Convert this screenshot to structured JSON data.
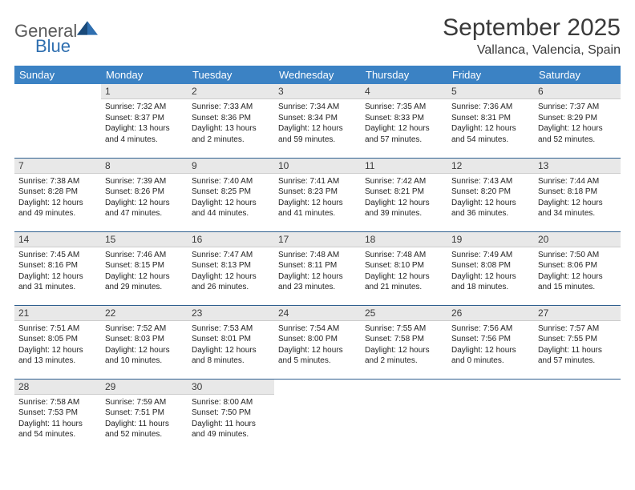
{
  "logo": {
    "word1": "General",
    "word2": "Blue",
    "gray": "#6a6a6a",
    "blue": "#2f6fb0",
    "triangle": "#2f6fb0"
  },
  "title": "September 2025",
  "location": "Vallanca, Valencia, Spain",
  "colors": {
    "header_bg": "#3b82c4",
    "header_text": "#ffffff",
    "daynum_bg": "#e8e8e8",
    "week_border": "#2f5f8f",
    "text": "#232323"
  },
  "day_headers": [
    "Sunday",
    "Monday",
    "Tuesday",
    "Wednesday",
    "Thursday",
    "Friday",
    "Saturday"
  ],
  "weeks": [
    [
      null,
      {
        "n": "1",
        "sr": "7:32 AM",
        "ss": "8:37 PM",
        "dl": "13 hours and 4 minutes."
      },
      {
        "n": "2",
        "sr": "7:33 AM",
        "ss": "8:36 PM",
        "dl": "13 hours and 2 minutes."
      },
      {
        "n": "3",
        "sr": "7:34 AM",
        "ss": "8:34 PM",
        "dl": "12 hours and 59 minutes."
      },
      {
        "n": "4",
        "sr": "7:35 AM",
        "ss": "8:33 PM",
        "dl": "12 hours and 57 minutes."
      },
      {
        "n": "5",
        "sr": "7:36 AM",
        "ss": "8:31 PM",
        "dl": "12 hours and 54 minutes."
      },
      {
        "n": "6",
        "sr": "7:37 AM",
        "ss": "8:29 PM",
        "dl": "12 hours and 52 minutes."
      }
    ],
    [
      {
        "n": "7",
        "sr": "7:38 AM",
        "ss": "8:28 PM",
        "dl": "12 hours and 49 minutes."
      },
      {
        "n": "8",
        "sr": "7:39 AM",
        "ss": "8:26 PM",
        "dl": "12 hours and 47 minutes."
      },
      {
        "n": "9",
        "sr": "7:40 AM",
        "ss": "8:25 PM",
        "dl": "12 hours and 44 minutes."
      },
      {
        "n": "10",
        "sr": "7:41 AM",
        "ss": "8:23 PM",
        "dl": "12 hours and 41 minutes."
      },
      {
        "n": "11",
        "sr": "7:42 AM",
        "ss": "8:21 PM",
        "dl": "12 hours and 39 minutes."
      },
      {
        "n": "12",
        "sr": "7:43 AM",
        "ss": "8:20 PM",
        "dl": "12 hours and 36 minutes."
      },
      {
        "n": "13",
        "sr": "7:44 AM",
        "ss": "8:18 PM",
        "dl": "12 hours and 34 minutes."
      }
    ],
    [
      {
        "n": "14",
        "sr": "7:45 AM",
        "ss": "8:16 PM",
        "dl": "12 hours and 31 minutes."
      },
      {
        "n": "15",
        "sr": "7:46 AM",
        "ss": "8:15 PM",
        "dl": "12 hours and 29 minutes."
      },
      {
        "n": "16",
        "sr": "7:47 AM",
        "ss": "8:13 PM",
        "dl": "12 hours and 26 minutes."
      },
      {
        "n": "17",
        "sr": "7:48 AM",
        "ss": "8:11 PM",
        "dl": "12 hours and 23 minutes."
      },
      {
        "n": "18",
        "sr": "7:48 AM",
        "ss": "8:10 PM",
        "dl": "12 hours and 21 minutes."
      },
      {
        "n": "19",
        "sr": "7:49 AM",
        "ss": "8:08 PM",
        "dl": "12 hours and 18 minutes."
      },
      {
        "n": "20",
        "sr": "7:50 AM",
        "ss": "8:06 PM",
        "dl": "12 hours and 15 minutes."
      }
    ],
    [
      {
        "n": "21",
        "sr": "7:51 AM",
        "ss": "8:05 PM",
        "dl": "12 hours and 13 minutes."
      },
      {
        "n": "22",
        "sr": "7:52 AM",
        "ss": "8:03 PM",
        "dl": "12 hours and 10 minutes."
      },
      {
        "n": "23",
        "sr": "7:53 AM",
        "ss": "8:01 PM",
        "dl": "12 hours and 8 minutes."
      },
      {
        "n": "24",
        "sr": "7:54 AM",
        "ss": "8:00 PM",
        "dl": "12 hours and 5 minutes."
      },
      {
        "n": "25",
        "sr": "7:55 AM",
        "ss": "7:58 PM",
        "dl": "12 hours and 2 minutes."
      },
      {
        "n": "26",
        "sr": "7:56 AM",
        "ss": "7:56 PM",
        "dl": "12 hours and 0 minutes."
      },
      {
        "n": "27",
        "sr": "7:57 AM",
        "ss": "7:55 PM",
        "dl": "11 hours and 57 minutes."
      }
    ],
    [
      {
        "n": "28",
        "sr": "7:58 AM",
        "ss": "7:53 PM",
        "dl": "11 hours and 54 minutes."
      },
      {
        "n": "29",
        "sr": "7:59 AM",
        "ss": "7:51 PM",
        "dl": "11 hours and 52 minutes."
      },
      {
        "n": "30",
        "sr": "8:00 AM",
        "ss": "7:50 PM",
        "dl": "11 hours and 49 minutes."
      },
      null,
      null,
      null,
      null
    ]
  ],
  "labels": {
    "sunrise": "Sunrise:",
    "sunset": "Sunset:",
    "daylight": "Daylight:"
  }
}
